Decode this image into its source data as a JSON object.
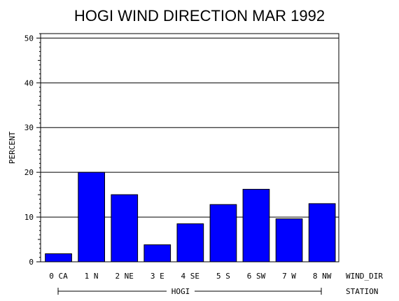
{
  "chart_data": {
    "type": "bar",
    "title": "HOGI WIND DIRECTION MAR 1992",
    "ylabel": "PERCENT",
    "xlabel": "WIND_DIR",
    "group_label": "HOGI",
    "group_axis_label": "STATION",
    "categories": [
      "0 CA",
      "1 N",
      "2 NE",
      "3 E",
      "4 SE",
      "5 S",
      "6 SW",
      "7 W",
      "8 NW"
    ],
    "values": [
      1.8,
      20.0,
      15.0,
      3.8,
      8.5,
      12.8,
      16.2,
      9.6,
      13.0
    ],
    "ylim": [
      0,
      51
    ],
    "yticks": [
      "0",
      "10",
      "20",
      "30",
      "40",
      "50"
    ],
    "ytick_values": [
      0,
      10,
      20,
      30,
      40,
      50
    ],
    "grid": "horizontal",
    "bar_color": "#0000ff"
  }
}
